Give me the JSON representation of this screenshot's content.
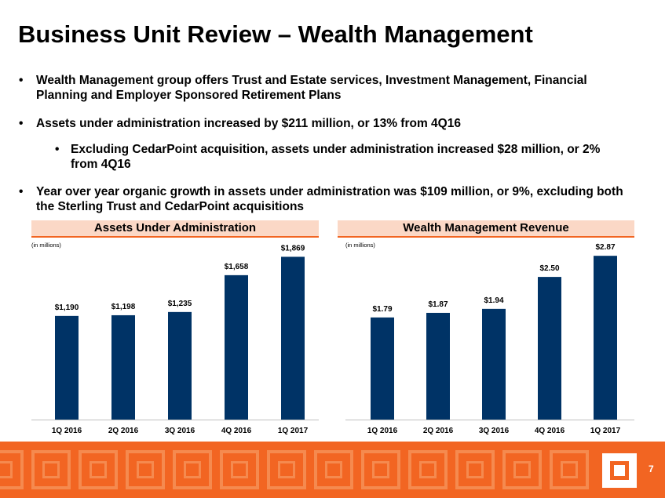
{
  "title": "Business Unit Review – Wealth Management",
  "bullets": [
    {
      "marker": "•",
      "text": "Wealth Management group offers Trust and Estate services, Investment Management, Financial Planning and Employer Sponsored Retirement Plans"
    },
    {
      "marker": "•",
      "text": "Assets under administration increased by $211 million, or 13% from 4Q16"
    },
    {
      "marker": "•",
      "text": "Excluding CedarPoint acquisition, assets under administration increased $28 million, or 2% from 4Q16"
    },
    {
      "marker": "•",
      "text": "Year over year organic growth in assets under administration was $109 million, or 9%, excluding both the Sterling Trust and CedarPoint acquisitions"
    }
  ],
  "colors": {
    "bar": "#003366",
    "accent": "#f26522",
    "header_bg": "#fbd8c6"
  },
  "chart_data": [
    {
      "type": "bar",
      "title": "Assets Under Administration",
      "units": "(in millions)",
      "categories": [
        "1Q 2016",
        "2Q 2016",
        "3Q 2016",
        "4Q 2016",
        "1Q 2017"
      ],
      "values": [
        1190,
        1198,
        1235,
        1658,
        1869
      ],
      "labels": [
        "$1,190",
        "$1,198",
        "$1,235",
        "$1,658",
        "$1,869"
      ],
      "ylim": [
        0,
        1900
      ]
    },
    {
      "type": "bar",
      "title": "Wealth Management Revenue",
      "units": "(in millions)",
      "categories": [
        "1Q 2016",
        "2Q 2016",
        "3Q 2016",
        "4Q 2016",
        "1Q 2017"
      ],
      "values": [
        1.79,
        1.87,
        1.94,
        2.5,
        2.87
      ],
      "labels": [
        "$1.79",
        "$1.87",
        "$1.94",
        "$2.50",
        "$2.87"
      ],
      "ylim": [
        0,
        2.9
      ]
    }
  ],
  "footer": {
    "page_number": "7",
    "logo_icon": "square-logo-icon"
  }
}
